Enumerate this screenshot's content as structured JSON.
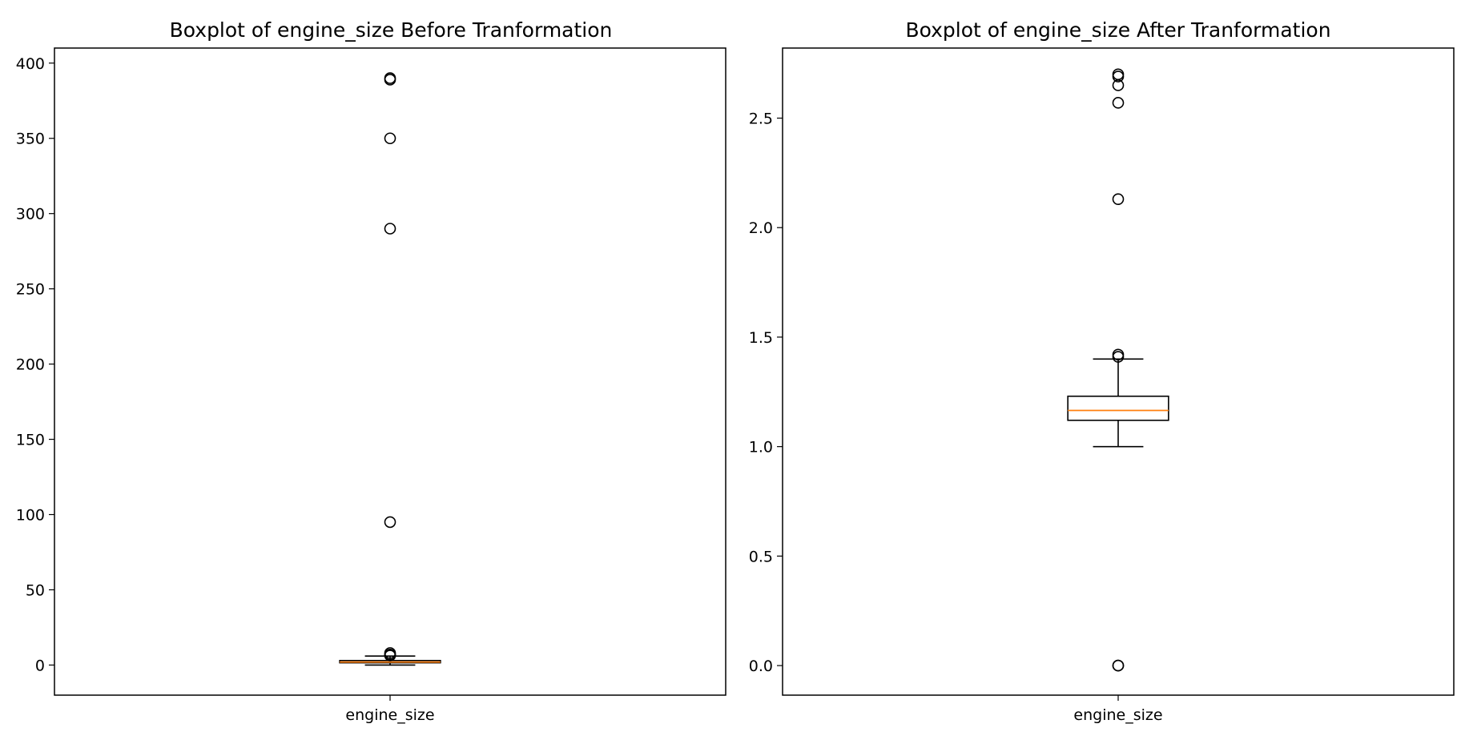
{
  "chart_data": [
    {
      "type": "boxplot",
      "title": "Boxplot of engine_size Before Tranformation",
      "categories": [
        "engine_size"
      ],
      "ylim": [
        -20,
        410
      ],
      "yticks": [
        0,
        50,
        100,
        150,
        200,
        250,
        300,
        350,
        400
      ],
      "ytick_labels": [
        "0",
        "50",
        "100",
        "150",
        "200",
        "250",
        "300",
        "350",
        "400"
      ],
      "grid": false,
      "box": {
        "whisker_low": 0,
        "q1": 1.5,
        "median": 2.0,
        "q3": 3.0,
        "whisker_high": 6.0
      },
      "outliers": [
        390,
        389,
        350,
        290,
        95,
        8,
        7,
        6.6,
        6.3
      ],
      "median_color": "#ff7f0e",
      "box_fill": "#ffffff"
    },
    {
      "type": "boxplot",
      "title": "Boxplot of engine_size After Tranformation",
      "categories": [
        "engine_size"
      ],
      "ylim": [
        -0.135,
        2.82
      ],
      "yticks": [
        0.0,
        0.5,
        1.0,
        1.5,
        2.0,
        2.5
      ],
      "ytick_labels": [
        "0.0",
        "0.5",
        "1.0",
        "1.5",
        "2.0",
        "2.5"
      ],
      "grid": false,
      "box": {
        "whisker_low": 1.0,
        "q1": 1.12,
        "median": 1.165,
        "q3": 1.23,
        "whisker_high": 1.4
      },
      "outliers": [
        2.7,
        2.69,
        2.65,
        2.57,
        2.13,
        1.42,
        1.41,
        0.0,
        0.0
      ],
      "median_color": "#ff7f0e",
      "box_fill": "#ffffff"
    }
  ]
}
